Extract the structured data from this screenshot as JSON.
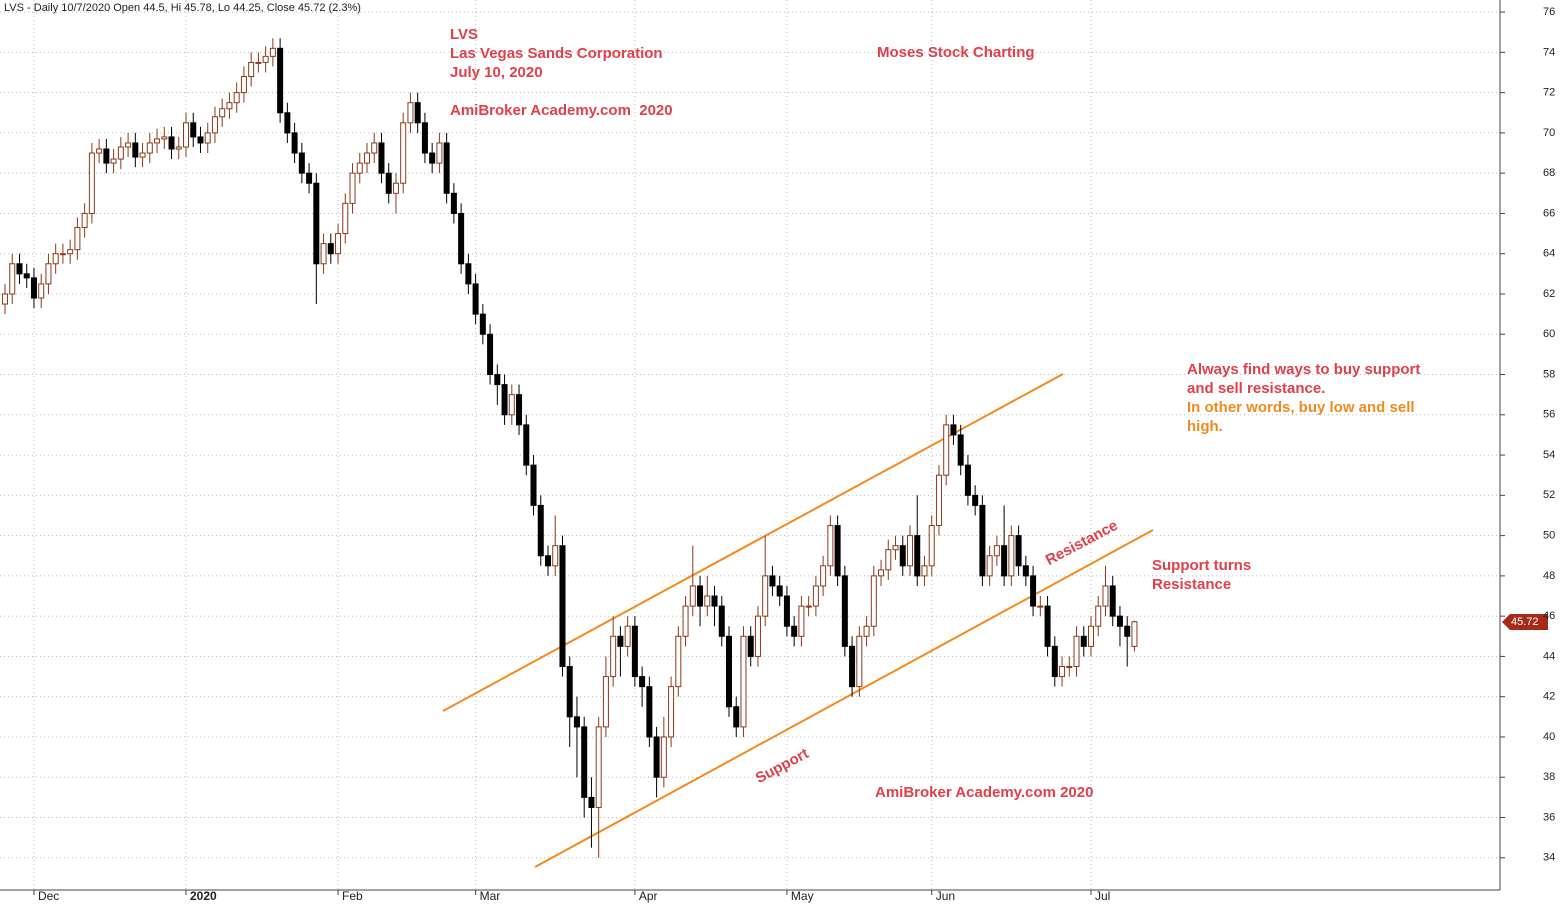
{
  "chart_data": {
    "type": "candlestick",
    "title": "LVS - Daily 10/7/2020 Open 44.5, Hi 45.78, Lo 44.25, Close 45.72 (2.3%)",
    "annotations": [
      "LVS",
      "Las Vegas Sands Corporation",
      "July 10, 2020",
      "AmiBroker Academy.com  2020",
      "Moses Stock Charting",
      "Always find ways to buy support",
      "and sell resistance.",
      "In other words, buy low and sell",
      "high.",
      "Support turns",
      "Resistance",
      "Resistance",
      "Support",
      "AmiBroker Academy.com 2020"
    ],
    "categories": [
      null,
      null,
      null,
      null,
      "Dec",
      null,
      null,
      null,
      null,
      null,
      null,
      null,
      null,
      null,
      null,
      null,
      null,
      null,
      null,
      null,
      null,
      null,
      null,
      null,
      null,
      "2020",
      null,
      null,
      null,
      null,
      null,
      null,
      null,
      null,
      null,
      null,
      null,
      null,
      null,
      null,
      null,
      null,
      null,
      null,
      null,
      null,
      "Feb",
      null,
      null,
      null,
      null,
      null,
      null,
      null,
      null,
      null,
      null,
      null,
      null,
      null,
      null,
      null,
      null,
      null,
      null,
      "Mar",
      null,
      null,
      null,
      null,
      null,
      null,
      null,
      null,
      null,
      null,
      null,
      null,
      null,
      null,
      null,
      null,
      null,
      null,
      null,
      null,
      null,
      "Apr",
      null,
      null,
      null,
      null,
      null,
      null,
      null,
      null,
      null,
      null,
      null,
      null,
      null,
      null,
      null,
      null,
      null,
      null,
      null,
      null,
      "May",
      null,
      null,
      null,
      null,
      null,
      null,
      null,
      null,
      null,
      null,
      null,
      null,
      null,
      null,
      null,
      null,
      null,
      null,
      null,
      "Jun",
      null,
      null,
      null,
      null,
      null,
      null,
      null,
      null,
      null,
      null,
      null,
      null,
      null,
      null,
      null,
      null,
      null,
      null,
      null,
      null,
      null,
      "Jul",
      null,
      null,
      null,
      null,
      null,
      null
    ],
    "open": [
      61.5,
      62,
      63.5,
      63,
      62.8,
      61.8,
      62.5,
      63.5,
      64,
      64,
      64.2,
      65.3,
      66,
      69,
      69.2,
      68.5,
      68.7,
      69.3,
      69.5,
      68.8,
      69,
      69.5,
      69.7,
      69.8,
      69.2,
      69.3,
      70.5,
      69.8,
      69.5,
      70,
      70.8,
      71.2,
      71.5,
      72,
      72.8,
      73.5,
      73.5,
      73.8,
      74.2,
      71,
      70,
      69,
      68,
      67.5,
      63.5,
      64.5,
      64,
      65,
      66.5,
      68,
      68.5,
      69,
      69.5,
      68,
      67,
      67.5,
      70.5,
      71.5,
      70.5,
      69,
      68.5,
      69.5,
      67,
      66,
      63.5,
      62.5,
      61,
      60,
      58,
      57.5,
      56,
      57,
      55.5,
      53.5,
      51.5,
      49,
      48.5,
      49.5,
      43.5,
      41,
      40.5,
      37,
      36.5,
      40.5,
      43,
      45,
      44.5,
      45.5,
      43,
      42.5,
      40,
      38,
      40,
      42.5,
      45,
      46.5,
      47.5,
      46.5,
      47,
      46.5,
      45,
      41.5,
      40.5,
      45,
      44,
      46,
      48,
      47.5,
      47,
      45.5,
      45,
      46.5,
      46.5,
      47.5,
      48.5,
      50.5,
      48,
      44.5,
      42.5,
      45,
      45.5,
      48,
      48.3,
      49.3,
      49.5,
      48.5,
      50,
      48,
      48.5,
      50.5,
      53,
      55.5,
      55,
      53.5,
      52,
      51.5,
      48,
      49,
      49.5,
      48,
      50,
      48.5,
      48,
      46.5,
      46.5,
      44.5,
      43,
      43.5,
      43.5,
      45,
      44.5,
      45.5,
      46.5,
      47.5,
      46,
      45.5,
      44.5
    ],
    "high": [
      62.5,
      64,
      64,
      63.5,
      63.3,
      63,
      64,
      64.5,
      64.5,
      64.7,
      65.8,
      66.5,
      69.5,
      69.7,
      69.7,
      69.2,
      69.8,
      70,
      70,
      69.5,
      70,
      70.2,
      70.3,
      70.3,
      69.8,
      71,
      71,
      70.3,
      70.5,
      71.3,
      71.7,
      72,
      72.5,
      73.3,
      74,
      74,
      74.3,
      74.7,
      74.7,
      71.5,
      70.5,
      69.5,
      68.5,
      68,
      65,
      65,
      65.5,
      67,
      68.5,
      69,
      69.5,
      70,
      70,
      68.5,
      68,
      71,
      72,
      72,
      71,
      69.5,
      70,
      70,
      67.5,
      66.5,
      64,
      63,
      61.5,
      60.5,
      58.5,
      58,
      57.5,
      57.5,
      56,
      54,
      52,
      49.5,
      51,
      50,
      44,
      42,
      41,
      38,
      41,
      44,
      46,
      45.5,
      46,
      46,
      43.5,
      43,
      40.5,
      41,
      43,
      45.5,
      47,
      49.5,
      48,
      48,
      47.5,
      47,
      45.5,
      42,
      45.5,
      45.5,
      46.5,
      50,
      48.5,
      48,
      47.5,
      46,
      47,
      47,
      48,
      49,
      51,
      51,
      48.5,
      45,
      45.5,
      46,
      48.5,
      48.8,
      49.8,
      50,
      50,
      50.5,
      52,
      49,
      51,
      53.5,
      56,
      56,
      55.5,
      54,
      52.5,
      52,
      49.5,
      50,
      51.5,
      50.5,
      50.5,
      49,
      48.5,
      47,
      47,
      45,
      44,
      44,
      45.5,
      45.5,
      46,
      47,
      48.5,
      48,
      46.5,
      46,
      45.78
    ],
    "low": [
      61,
      61.5,
      62.5,
      62.3,
      61.3,
      61.3,
      62,
      63,
      63.5,
      63.5,
      63.7,
      64.8,
      65.5,
      68.5,
      68,
      68,
      68.2,
      68.8,
      68.3,
      68.3,
      68.5,
      69,
      69.2,
      68.7,
      68.7,
      68.8,
      69.3,
      69,
      69,
      69.5,
      70.3,
      70.7,
      71,
      71.5,
      72.3,
      73,
      73,
      73.3,
      70.5,
      69.5,
      68.5,
      67.5,
      67,
      61.5,
      63,
      63.5,
      63.5,
      64.5,
      66,
      67.5,
      68,
      68.5,
      67.5,
      66.5,
      66,
      67,
      70,
      70,
      68.5,
      68,
      68,
      66.5,
      65.5,
      63,
      62,
      60.5,
      59.5,
      57.5,
      56.5,
      55.5,
      55.5,
      55,
      53,
      51,
      48.5,
      48,
      48,
      43,
      39.5,
      38,
      36,
      34.5,
      34,
      40,
      42.5,
      43,
      44,
      42.5,
      41.5,
      39.5,
      37,
      37.5,
      39.5,
      42,
      44.5,
      46,
      45.5,
      46,
      45.5,
      44.5,
      41,
      40,
      40,
      43.5,
      43.5,
      45.5,
      47,
      46.5,
      45,
      44.5,
      44.5,
      46,
      46,
      47,
      48,
      47.5,
      44,
      42,
      42,
      44.5,
      45,
      47.5,
      47.8,
      48.8,
      48,
      48,
      47.5,
      47.5,
      48,
      50,
      52.5,
      54.5,
      53,
      51.5,
      51,
      47.5,
      47.5,
      48.5,
      47.5,
      47.5,
      48,
      47.5,
      46,
      46,
      44,
      42.5,
      42.5,
      43,
      43,
      44,
      44,
      45,
      46,
      45.5,
      44.5,
      43.5,
      44.25
    ],
    "close": [
      62,
      63.5,
      63,
      62.8,
      61.8,
      62.5,
      63.5,
      64,
      64,
      64.2,
      65.3,
      66,
      69,
      69.2,
      68.5,
      68.7,
      69.3,
      69.5,
      68.8,
      69,
      69.5,
      69.7,
      69.8,
      69.2,
      69.3,
      70.5,
      69.8,
      69.5,
      70,
      70.8,
      71.2,
      71.5,
      72,
      72.8,
      73.5,
      73.5,
      73.8,
      74.2,
      71,
      70,
      69,
      68,
      67.5,
      63.5,
      64.5,
      64,
      65,
      66.5,
      68,
      68.5,
      69,
      69.5,
      68,
      67,
      67.5,
      70.5,
      71.5,
      70.5,
      69,
      68.5,
      69.5,
      67,
      66,
      63.5,
      62.5,
      61,
      60,
      58,
      57.5,
      56,
      57,
      55.5,
      53.5,
      51.5,
      49,
      48.5,
      49.5,
      43.5,
      41,
      40.5,
      37,
      36.5,
      40.5,
      43,
      45,
      44.5,
      45.5,
      43,
      42.5,
      40,
      38,
      40,
      42.5,
      45,
      46.5,
      47.5,
      46.5,
      47,
      46.5,
      45,
      41.5,
      40.5,
      45,
      44,
      46,
      48,
      47.5,
      47,
      45.5,
      45,
      46.5,
      46.5,
      47.5,
      48.5,
      50.5,
      48,
      44.5,
      42.5,
      45,
      45.5,
      48,
      48.3,
      49.3,
      49.5,
      48.5,
      50,
      48,
      48.5,
      50.5,
      53,
      55.5,
      55,
      53.5,
      52,
      51.5,
      48,
      49,
      49.5,
      48,
      50,
      48.5,
      48,
      46.5,
      46.5,
      44.5,
      43,
      43.5,
      43.5,
      45,
      44.5,
      45.5,
      46.5,
      47.5,
      46,
      45.5,
      45,
      45.72
    ],
    "up_color": "#ffffff",
    "down_color": "#000000",
    "edge_color": "#8b3a1a",
    "ylim": [
      32.4,
      76.6
    ],
    "yticks": [
      34,
      36,
      38,
      40,
      42,
      44,
      46,
      48,
      50,
      52,
      54,
      56,
      58,
      60,
      62,
      64,
      66,
      68,
      70,
      72,
      74,
      76
    ],
    "grid": true
  }
}
